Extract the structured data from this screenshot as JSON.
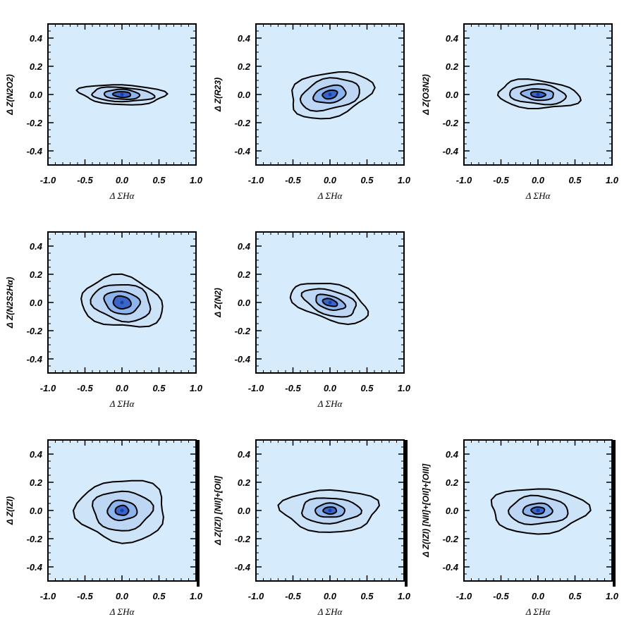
{
  "figure": {
    "background": "#ffffff",
    "panel_fill": "#d6ebfb",
    "contour_color": "#000000",
    "core_color": "#3b66c8"
  },
  "chart_data": [
    {
      "type": "contour",
      "xlabel": "Δ ΣHα",
      "ylabel": "Δ Z(N2O2)",
      "xlim": [
        -1.0,
        1.0
      ],
      "ylim": [
        -0.5,
        0.5
      ],
      "xticks": [
        "-1.0",
        "-0.5",
        "0.0",
        "0.5",
        "1.0"
      ],
      "yticks": [
        "-0.4",
        "-0.2",
        "0.0",
        "0.2",
        "0.4"
      ],
      "peak": [
        0.0,
        0.0
      ],
      "contour_halfwidths": [
        [
          0.58,
          0.07
        ],
        [
          0.42,
          0.05
        ],
        [
          0.24,
          0.035
        ],
        [
          0.12,
          0.02
        ]
      ],
      "tilt": -0.02
    },
    {
      "type": "contour",
      "xlabel": "Δ ΣHα",
      "ylabel": "Δ Z(R23)",
      "xlim": [
        -1.0,
        1.0
      ],
      "ylim": [
        -0.5,
        0.5
      ],
      "xticks": [
        "-1.0",
        "-0.5",
        "0.0",
        "0.5",
        "1.0"
      ],
      "yticks": [
        "-0.4",
        "-0.2",
        "0.0",
        "0.2",
        "0.4"
      ],
      "peak": [
        0.0,
        0.0
      ],
      "contour_halfwidths": [
        [
          0.55,
          0.16
        ],
        [
          0.4,
          0.11
        ],
        [
          0.22,
          0.06
        ],
        [
          0.1,
          0.03
        ]
      ],
      "tilt": 0.08
    },
    {
      "type": "contour",
      "xlabel": "Δ ΣHα",
      "ylabel": "Δ Z(O3N2)",
      "xlim": [
        -1.0,
        1.0
      ],
      "ylim": [
        -0.5,
        0.5
      ],
      "xticks": [
        "-1.0",
        "-0.5",
        "0.0",
        "0.5",
        "1.0"
      ],
      "yticks": [
        "-0.4",
        "-0.2",
        "0.0",
        "0.2",
        "0.4"
      ],
      "peak": [
        0.0,
        0.0
      ],
      "contour_halfwidths": [
        [
          0.55,
          0.1
        ],
        [
          0.38,
          0.07
        ],
        [
          0.22,
          0.04
        ],
        [
          0.1,
          0.02
        ]
      ],
      "tilt": -0.03
    },
    {
      "type": "contour",
      "xlabel": "Δ ΣHα",
      "ylabel": "Δ Z(N2S2Hα)",
      "xlim": [
        -1.0,
        1.0
      ],
      "ylim": [
        -0.5,
        0.5
      ],
      "xticks": [
        "-1.0",
        "-0.5",
        "0.0",
        "0.5",
        "1.0"
      ],
      "yticks": [
        "-0.4",
        "-0.2",
        "0.0",
        "0.2",
        "0.4"
      ],
      "peak": [
        0.0,
        0.0
      ],
      "contour_halfwidths": [
        [
          0.55,
          0.18
        ],
        [
          0.4,
          0.13
        ],
        [
          0.24,
          0.08
        ],
        [
          0.12,
          0.045
        ]
      ],
      "tilt": -0.05
    },
    {
      "type": "contour",
      "xlabel": "Δ ΣHα",
      "ylabel": "Δ Z(N2)",
      "xlim": [
        -1.0,
        1.0
      ],
      "ylim": [
        -0.5,
        0.5
      ],
      "xticks": [
        "-1.0",
        "-0.5",
        "0.0",
        "0.5",
        "1.0"
      ],
      "yticks": [
        "-0.4",
        "-0.2",
        "0.0",
        "0.2",
        "0.4"
      ],
      "peak": [
        0.0,
        0.0
      ],
      "contour_halfwidths": [
        [
          0.52,
          0.13
        ],
        [
          0.36,
          0.09
        ],
        [
          0.2,
          0.05
        ],
        [
          0.1,
          0.025
        ]
      ],
      "tilt": -0.12
    },
    {
      "type": "contour",
      "xlabel": "Δ ΣHα",
      "ylabel": "Δ Z(IZI)",
      "xlim": [
        -1.0,
        1.0
      ],
      "ylim": [
        -0.5,
        0.5
      ],
      "xticks": [
        "-1.0",
        "-0.5",
        "0.0",
        "0.5",
        "1.0"
      ],
      "yticks": [
        "-0.4",
        "-0.2",
        "0.0",
        "0.2",
        "0.4"
      ],
      "peak": [
        0.0,
        0.0
      ],
      "contour_halfwidths": [
        [
          0.6,
          0.22
        ],
        [
          0.4,
          0.14
        ],
        [
          0.2,
          0.07
        ],
        [
          0.09,
          0.035
        ]
      ],
      "tilt": 0.0
    },
    {
      "type": "contour",
      "xlabel": "Δ ΣHα",
      "ylabel": "Δ Z(IZI) [NII]+[OII]",
      "xlim": [
        -1.0,
        1.0
      ],
      "ylim": [
        -0.5,
        0.5
      ],
      "xticks": [
        "-1.0",
        "-0.5",
        "0.0",
        "0.5",
        "1.0"
      ],
      "yticks": [
        "-0.4",
        "-0.2",
        "0.0",
        "0.2",
        "0.4"
      ],
      "peak": [
        0.0,
        0.0
      ],
      "contour_halfwidths": [
        [
          0.65,
          0.15
        ],
        [
          0.4,
          0.09
        ],
        [
          0.2,
          0.05
        ],
        [
          0.09,
          0.025
        ]
      ],
      "tilt": 0.0
    },
    {
      "type": "contour",
      "xlabel": "Δ ΣHα",
      "ylabel": "Δ Z(IZI) [NII]+[OII]+[OIII]",
      "xlim": [
        -1.0,
        1.0
      ],
      "ylim": [
        -0.5,
        0.5
      ],
      "xticks": [
        "-1.0",
        "-0.5",
        "0.0",
        "0.5",
        "1.0"
      ],
      "yticks": [
        "-0.4",
        "-0.2",
        "0.0",
        "0.2",
        "0.4"
      ],
      "peak": [
        0.0,
        0.0
      ],
      "contour_halfwidths": [
        [
          0.65,
          0.16
        ],
        [
          0.4,
          0.1
        ],
        [
          0.2,
          0.05
        ],
        [
          0.09,
          0.025
        ]
      ],
      "tilt": 0.0
    }
  ]
}
